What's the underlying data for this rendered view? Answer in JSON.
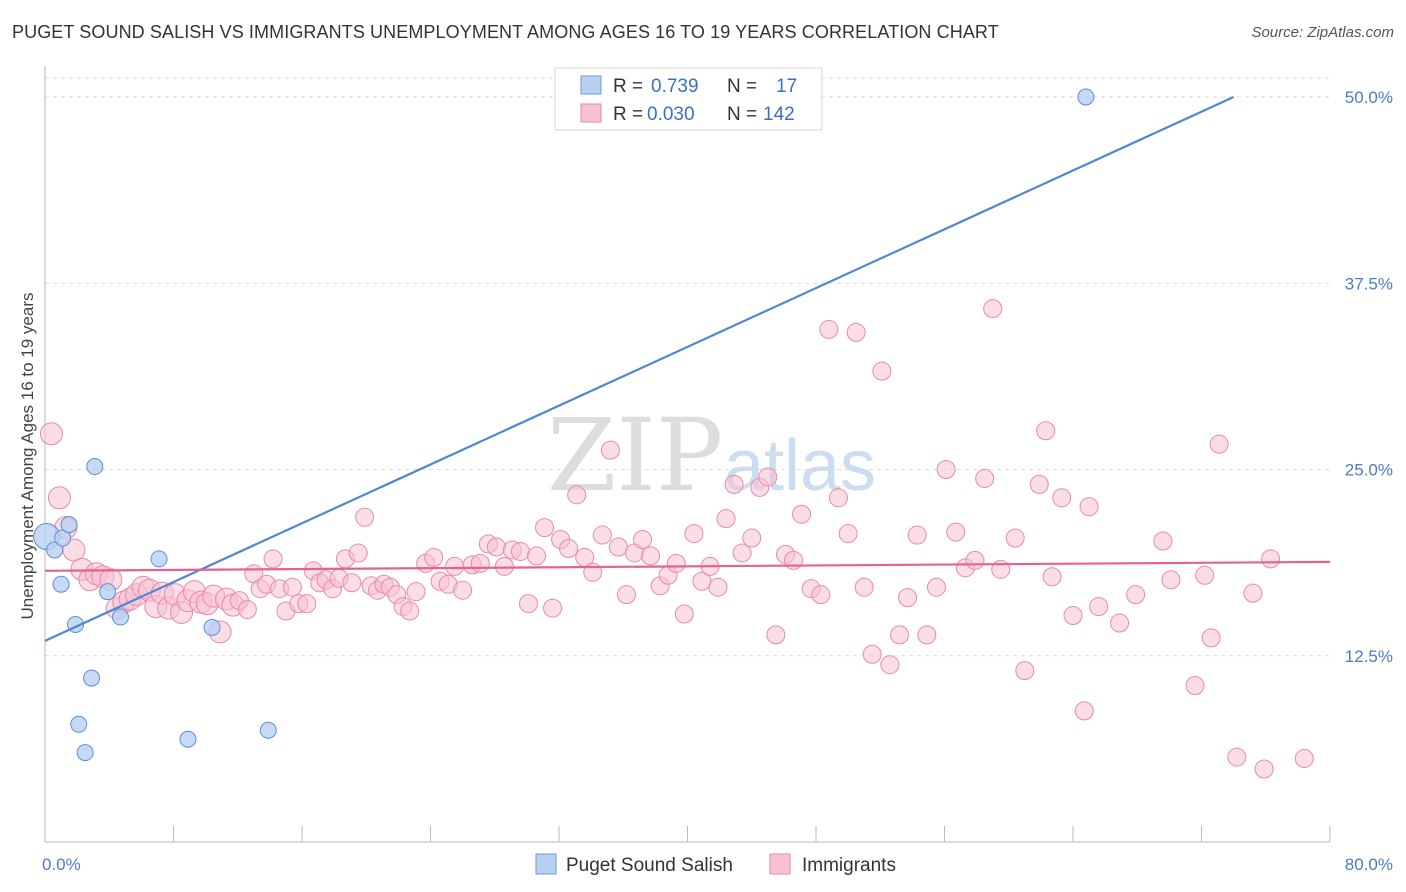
{
  "title": "PUGET SOUND SALISH VS IMMIGRANTS UNEMPLOYMENT AMONG AGES 16 TO 19 YEARS CORRELATION CHART",
  "source": "Source: ZipAtlas.com",
  "watermark": {
    "zip": "ZIP",
    "atlas": "atlas"
  },
  "colors": {
    "blue": "#4f86d6",
    "blue_fill": "#b8d0f2",
    "pink": "#e8608e",
    "pink_fill": "#f7c1d2",
    "axis_text": "#4a7cc9"
  },
  "legend": {
    "r_label": "R =",
    "n_label": "N =",
    "series": [
      {
        "r": "0.739",
        "n": "17"
      },
      {
        "r": "0.030",
        "n": "142"
      }
    ]
  },
  "bottom_legend": [
    "Puget Sound Salish",
    "Immigrants"
  ],
  "chart_data": {
    "type": "scatter",
    "title": "PUGET SOUND SALISH VS IMMIGRANTS UNEMPLOYMENT AMONG AGES 16 TO 19 YEARS CORRELATION CHART",
    "xlabel": "",
    "ylabel": "Unemployment Among Ages 16 to 19 years",
    "xlim": [
      0,
      80
    ],
    "ylim": [
      0,
      51
    ],
    "x_tick_labels": [
      "0.0%",
      "80.0%"
    ],
    "y_ticks": [
      12.5,
      25.0,
      37.5,
      50.0
    ],
    "y_tick_labels": [
      "12.5%",
      "25.0%",
      "37.5%",
      "50.0%"
    ],
    "series": [
      {
        "name": "Puget Sound Salish",
        "r": 0.739,
        "n": 17,
        "trend": {
          "x": [
            0,
            74
          ],
          "y": [
            13.5,
            50.0
          ]
        },
        "points": [
          [
            0.1,
            20.5
          ],
          [
            0.6,
            19.6
          ],
          [
            1.0,
            17.3
          ],
          [
            1.1,
            20.4
          ],
          [
            1.5,
            21.3
          ],
          [
            1.9,
            14.6
          ],
          [
            2.1,
            7.9
          ],
          [
            2.5,
            6.0
          ],
          [
            2.9,
            11.0
          ],
          [
            3.1,
            25.2
          ],
          [
            3.9,
            16.8
          ],
          [
            4.7,
            15.1
          ],
          [
            7.1,
            19.0
          ],
          [
            8.9,
            6.9
          ],
          [
            10.4,
            14.4
          ],
          [
            13.9,
            7.5
          ],
          [
            64.8,
            50.0
          ]
        ]
      },
      {
        "name": "Immigrants",
        "r": 0.03,
        "n": 142,
        "trend": {
          "x": [
            0,
            80
          ],
          "y": [
            18.2,
            18.8
          ]
        },
        "points": [
          [
            0.4,
            27.4
          ],
          [
            0.9,
            23.1
          ],
          [
            1.3,
            21.1
          ],
          [
            1.8,
            19.6
          ],
          [
            2.3,
            18.3
          ],
          [
            2.8,
            17.6
          ],
          [
            3.2,
            18.0
          ],
          [
            3.6,
            17.8
          ],
          [
            4.1,
            17.6
          ],
          [
            4.5,
            15.7
          ],
          [
            4.9,
            16.1
          ],
          [
            5.3,
            16.3
          ],
          [
            5.7,
            16.6
          ],
          [
            6.1,
            17.1
          ],
          [
            6.5,
            16.9
          ],
          [
            6.9,
            15.8
          ],
          [
            7.3,
            16.7
          ],
          [
            7.7,
            15.7
          ],
          [
            8.1,
            16.6
          ],
          [
            8.5,
            15.4
          ],
          [
            8.9,
            16.2
          ],
          [
            9.3,
            16.8
          ],
          [
            9.7,
            16.1
          ],
          [
            10.1,
            16.0
          ],
          [
            10.5,
            16.5
          ],
          [
            10.9,
            14.1
          ],
          [
            11.3,
            16.3
          ],
          [
            11.7,
            15.9
          ],
          [
            12.1,
            16.2
          ],
          [
            12.6,
            15.6
          ],
          [
            13.0,
            18.0
          ],
          [
            13.4,
            17.0
          ],
          [
            13.8,
            17.3
          ],
          [
            14.2,
            19.0
          ],
          [
            14.6,
            17.0
          ],
          [
            15.0,
            15.5
          ],
          [
            15.4,
            17.1
          ],
          [
            15.8,
            16.0
          ],
          [
            16.3,
            16.0
          ],
          [
            16.7,
            18.2
          ],
          [
            17.1,
            17.4
          ],
          [
            17.5,
            17.6
          ],
          [
            17.9,
            17.0
          ],
          [
            18.3,
            17.7
          ],
          [
            18.7,
            19.0
          ],
          [
            19.1,
            17.4
          ],
          [
            19.5,
            19.4
          ],
          [
            19.9,
            21.8
          ],
          [
            20.3,
            17.2
          ],
          [
            20.7,
            16.9
          ],
          [
            21.1,
            17.3
          ],
          [
            21.5,
            17.1
          ],
          [
            21.9,
            16.6
          ],
          [
            22.3,
            15.8
          ],
          [
            22.7,
            15.5
          ],
          [
            23.1,
            16.8
          ],
          [
            23.7,
            18.7
          ],
          [
            24.2,
            19.1
          ],
          [
            24.6,
            17.5
          ],
          [
            25.1,
            17.3
          ],
          [
            25.5,
            18.5
          ],
          [
            26.0,
            16.9
          ],
          [
            26.6,
            18.6
          ],
          [
            27.1,
            18.7
          ],
          [
            27.6,
            20.0
          ],
          [
            28.1,
            19.8
          ],
          [
            28.6,
            18.5
          ],
          [
            29.1,
            19.6
          ],
          [
            29.6,
            19.5
          ],
          [
            30.1,
            16.0
          ],
          [
            30.6,
            19.2
          ],
          [
            31.1,
            21.1
          ],
          [
            31.6,
            15.7
          ],
          [
            32.1,
            20.3
          ],
          [
            32.6,
            19.7
          ],
          [
            33.1,
            23.3
          ],
          [
            33.6,
            19.1
          ],
          [
            34.1,
            18.1
          ],
          [
            34.7,
            20.6
          ],
          [
            35.2,
            26.3
          ],
          [
            35.7,
            19.8
          ],
          [
            36.2,
            16.6
          ],
          [
            36.7,
            19.4
          ],
          [
            37.2,
            20.3
          ],
          [
            37.7,
            19.2
          ],
          [
            38.3,
            17.2
          ],
          [
            38.8,
            17.9
          ],
          [
            39.3,
            18.7
          ],
          [
            39.8,
            15.3
          ],
          [
            40.4,
            20.7
          ],
          [
            40.9,
            17.5
          ],
          [
            41.4,
            18.5
          ],
          [
            41.9,
            17.1
          ],
          [
            42.4,
            21.7
          ],
          [
            42.9,
            24.0
          ],
          [
            43.4,
            19.4
          ],
          [
            44.0,
            20.4
          ],
          [
            44.5,
            23.8
          ],
          [
            45.0,
            24.5
          ],
          [
            45.5,
            13.9
          ],
          [
            46.1,
            19.3
          ],
          [
            46.6,
            18.9
          ],
          [
            47.1,
            22.0
          ],
          [
            47.7,
            17.0
          ],
          [
            48.3,
            16.6
          ],
          [
            48.8,
            34.4
          ],
          [
            49.4,
            23.1
          ],
          [
            50.0,
            20.7
          ],
          [
            50.5,
            34.2
          ],
          [
            51.0,
            17.1
          ],
          [
            51.5,
            12.6
          ],
          [
            52.1,
            31.6
          ],
          [
            52.6,
            11.9
          ],
          [
            53.2,
            13.9
          ],
          [
            53.7,
            16.4
          ],
          [
            54.3,
            20.6
          ],
          [
            54.9,
            13.9
          ],
          [
            55.5,
            17.1
          ],
          [
            56.1,
            25.0
          ],
          [
            56.7,
            20.8
          ],
          [
            57.3,
            18.4
          ],
          [
            57.9,
            18.9
          ],
          [
            58.5,
            24.4
          ],
          [
            59.0,
            35.8
          ],
          [
            59.5,
            18.3
          ],
          [
            60.4,
            20.4
          ],
          [
            61.0,
            11.5
          ],
          [
            61.9,
            24.0
          ],
          [
            62.3,
            27.6
          ],
          [
            62.7,
            17.8
          ],
          [
            63.3,
            23.1
          ],
          [
            64.0,
            15.2
          ],
          [
            64.7,
            8.8
          ],
          [
            65.0,
            22.5
          ],
          [
            65.6,
            15.8
          ],
          [
            66.9,
            14.7
          ],
          [
            67.9,
            16.6
          ],
          [
            69.6,
            20.2
          ],
          [
            70.1,
            17.6
          ],
          [
            71.6,
            10.5
          ],
          [
            72.2,
            17.9
          ],
          [
            72.6,
            13.7
          ],
          [
            73.1,
            26.7
          ],
          [
            74.2,
            5.7
          ],
          [
            75.2,
            16.7
          ],
          [
            75.9,
            4.9
          ],
          [
            76.3,
            19.0
          ],
          [
            78.4,
            5.6
          ]
        ]
      }
    ]
  }
}
